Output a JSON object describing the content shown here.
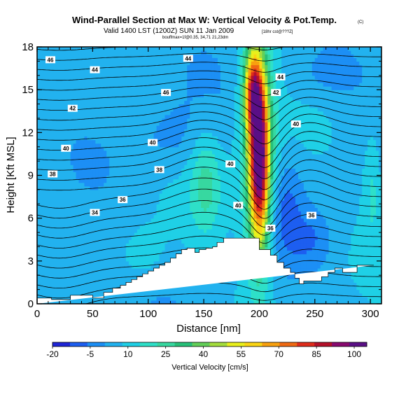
{
  "chart_data": {
    "type": "heatmap",
    "title": "Wind-Parallel Section at Max W: Vertical Velocity & Pot.Temp.",
    "title_mark": "(C)",
    "subtitle": "Valid 1400 LST (1200Z) SUN 11 Jan 2009",
    "subtitle_note": "[18hr cst@???Z]",
    "subsubtitle": "bouffmax=1f@0.35, 34,71 21,23dm",
    "xlabel": "Distance [nm]",
    "ylabel": "Height [Kft MSL]",
    "xlim": [
      0,
      310
    ],
    "ylim": [
      0,
      18
    ],
    "x_ticks": [
      0,
      50,
      100,
      150,
      200,
      250,
      300
    ],
    "y_ticks": [
      0,
      3,
      6,
      9,
      12,
      15,
      18
    ],
    "colorbar": {
      "label": "Vertical Velocity [cm/s]",
      "tick_values": [
        -20,
        -5,
        10,
        25,
        40,
        55,
        70,
        85,
        100
      ],
      "tick_labels": [
        "-20",
        "-5",
        "10",
        "25",
        "40",
        "55",
        "70",
        "85",
        "100"
      ],
      "min": -20,
      "max": 105,
      "colors": [
        "#1f25d6",
        "#1d5ef0",
        "#1c8ff5",
        "#22b2ef",
        "#1fd0e6",
        "#2ee0c8",
        "#37d8a0",
        "#27c078",
        "#62cf58",
        "#a4dd3c",
        "#e9f01c",
        "#fbd514",
        "#f8a10f",
        "#ef6913",
        "#df2c1b",
        "#b4102a",
        "#88096f",
        "#5a0f86"
      ]
    },
    "terrain_profile": {
      "x": [
        0,
        13,
        13,
        30,
        30,
        50,
        50,
        60,
        60,
        68,
        68,
        75,
        75,
        80,
        80,
        85,
        85,
        90,
        90,
        95,
        95,
        100,
        100,
        105,
        105,
        110,
        110,
        115,
        115,
        120,
        120,
        125,
        125,
        130,
        130,
        135,
        135,
        142,
        142,
        146,
        146,
        152,
        152,
        158,
        158,
        162,
        162,
        168,
        168,
        200,
        200,
        210,
        210,
        216,
        216,
        222,
        222,
        228,
        228,
        232,
        232,
        236,
        236,
        240,
        240,
        256,
        256,
        262,
        262,
        268,
        268,
        275,
        275,
        288,
        288,
        303,
        303,
        310
      ],
      "height": [
        0.4,
        0.4,
        0.3,
        0.3,
        0.6,
        0.6,
        0.4,
        0.4,
        0.8,
        0.8,
        1.1,
        1.1,
        1.3,
        1.3,
        1.5,
        1.5,
        1.7,
        1.7,
        1.9,
        1.9,
        2.1,
        2.1,
        2.3,
        2.3,
        2.5,
        2.5,
        2.7,
        2.7,
        2.9,
        2.9,
        3.2,
        3.2,
        3.5,
        3.5,
        3.8,
        3.8,
        3.9,
        3.9,
        3.6,
        3.6,
        3.8,
        3.8,
        3.9,
        3.9,
        4.0,
        4.0,
        4.3,
        4.3,
        4.6,
        4.6,
        3.8,
        3.8,
        3.4,
        3.4,
        2.9,
        2.9,
        2.5,
        2.5,
        2.2,
        2.2,
        1.8,
        1.8,
        1.4,
        1.4,
        1.6,
        1.6,
        1.9,
        1.9,
        2.2,
        2.2,
        2.5,
        2.5,
        2.2,
        2.2,
        2.7,
        2.7
      ]
    },
    "vertical_velocity_features": [
      {
        "name": "updraft-core",
        "x_center": 200,
        "height_center": 10,
        "peak_value": 90,
        "x_halfwidth": 9,
        "height_halfwidth": 6
      },
      {
        "name": "updraft-upper",
        "x_center": 194,
        "height_center": 15,
        "peak_value": 55,
        "x_halfwidth": 8,
        "height_halfwidth": 3
      },
      {
        "name": "updraft-column",
        "x_center": 198,
        "height_center": 11,
        "peak_value": 30,
        "x_halfwidth": 16,
        "height_halfwidth": 8
      },
      {
        "name": "green-lobe",
        "x_center": 152,
        "height_center": 8.5,
        "peak_value": 22,
        "x_halfwidth": 14,
        "height_halfwidth": 3.5
      },
      {
        "name": "downdraft-right",
        "x_center": 225,
        "height_center": 6.5,
        "peak_value": -6,
        "x_halfwidth": 14,
        "height_halfwidth": 3.5
      },
      {
        "name": "downdraft-right-low",
        "x_center": 248,
        "height_center": 4.5,
        "peak_value": -4,
        "x_halfwidth": 16,
        "height_halfwidth": 2
      },
      {
        "name": "blue-left-low",
        "x_center": 25,
        "height_center": 2.5,
        "peak_value": -2,
        "x_halfwidth": 30,
        "height_halfwidth": 2.5
      },
      {
        "name": "blue-upper-left",
        "x_center": 120,
        "height_center": 11.5,
        "peak_value": -2,
        "x_halfwidth": 30,
        "height_halfwidth": 2.5
      },
      {
        "name": "blue-top-left",
        "x_center": 60,
        "height_center": 16.5,
        "peak_value": -1,
        "x_halfwidth": 40,
        "height_halfwidth": 1.5
      },
      {
        "name": "blue-right-upper",
        "x_center": 260,
        "height_center": 16,
        "peak_value": -3,
        "x_halfwidth": 35,
        "height_halfwidth": 2
      },
      {
        "name": "green-right-edge",
        "x_center": 302,
        "height_center": 8.5,
        "peak_value": 16,
        "x_halfwidth": 8,
        "height_halfwidth": 4
      },
      {
        "name": "green-left-low",
        "x_center": 95,
        "height_center": 3.5,
        "peak_value": 12,
        "x_halfwidth": 20,
        "height_halfwidth": 2
      }
    ],
    "isentrope_labels": [
      {
        "text": "46",
        "x": 12,
        "height": 17.1
      },
      {
        "text": "44",
        "x": 52,
        "height": 16.4
      },
      {
        "text": "44",
        "x": 136,
        "height": 17.2
      },
      {
        "text": "46",
        "x": 116,
        "height": 14.8
      },
      {
        "text": "42",
        "x": 32,
        "height": 13.7
      },
      {
        "text": "40",
        "x": 26,
        "height": 10.9
      },
      {
        "text": "40",
        "x": 104,
        "height": 11.3
      },
      {
        "text": "38",
        "x": 14,
        "height": 9.1
      },
      {
        "text": "38",
        "x": 110,
        "height": 9.4
      },
      {
        "text": "36",
        "x": 77,
        "height": 7.3
      },
      {
        "text": "34",
        "x": 52,
        "height": 6.4
      },
      {
        "text": "40",
        "x": 174,
        "height": 9.8
      },
      {
        "text": "40",
        "x": 181,
        "height": 6.9
      },
      {
        "text": "44",
        "x": 219,
        "height": 15.9
      },
      {
        "text": "42",
        "x": 215,
        "height": 14.8
      },
      {
        "text": "40",
        "x": 233,
        "height": 12.6
      },
      {
        "text": "36",
        "x": 247,
        "height": 6.2
      },
      {
        "text": "36",
        "x": 210,
        "height": 5.3
      }
    ]
  }
}
